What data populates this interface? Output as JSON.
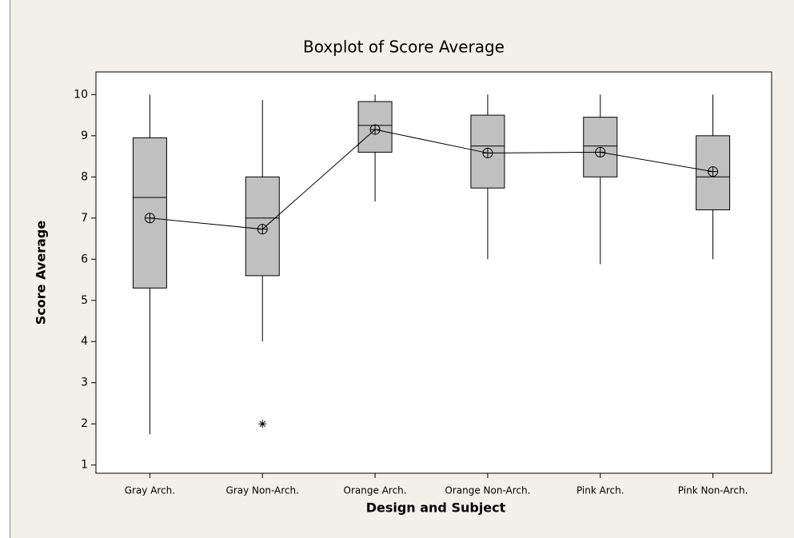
{
  "chart_data": {
    "type": "box",
    "title": "Boxplot of Score Average",
    "x_label": "Design and Subject",
    "y_label": "Score Average",
    "categories": [
      "Gray Arch.",
      "Gray Non-Arch.",
      "Orange Arch.",
      "Orange Non-Arch.",
      "Pink Arch.",
      "Pink Non-Arch."
    ],
    "series": [
      {
        "color": "#c0c0c0",
        "min": [
          1.75,
          4.0,
          7.4,
          6.0,
          5.88,
          6.0
        ],
        "q1": [
          5.3,
          5.6,
          8.6,
          7.73,
          8.0,
          7.2
        ],
        "median": [
          7.5,
          7.0,
          9.25,
          8.75,
          8.75,
          8.0
        ],
        "q3": [
          8.95,
          8.0,
          9.83,
          9.5,
          9.45,
          9.0
        ],
        "max": [
          10.0,
          9.87,
          10.0,
          10.0,
          10.0,
          10.0
        ],
        "mean": [
          7.0,
          6.73,
          9.15,
          8.58,
          8.6,
          8.13
        ],
        "outliers": [
          [],
          [
            2.0
          ],
          [],
          [],
          [],
          []
        ]
      }
    ],
    "ylim": [
      0.8,
      10.55
    ],
    "yticks": [
      1,
      2,
      3,
      4,
      5,
      6,
      7,
      8,
      9,
      10
    ],
    "grid": false
  }
}
